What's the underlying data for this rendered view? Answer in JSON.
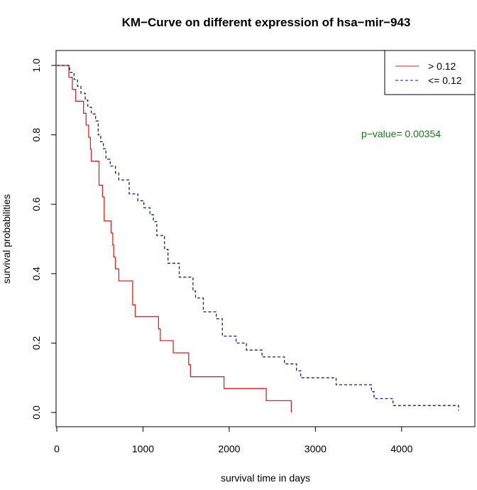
{
  "chart_data": {
    "type": "line",
    "subtype": "step",
    "title": "KM−Curve on different expression of hsa−mir−943",
    "xlabel": "survival time in days",
    "ylabel": "survival probabilities",
    "xlim": [
      0,
      4800
    ],
    "ylim": [
      0,
      1
    ],
    "x_ticks": [
      0,
      1000,
      2000,
      3000,
      4000
    ],
    "x_tick_labels": [
      "0",
      "1000",
      "2000",
      "3000",
      "4000"
    ],
    "y_ticks": [
      0,
      0.2,
      0.4,
      0.6,
      0.8,
      1.0
    ],
    "y_tick_labels": [
      "0.0",
      "0.2",
      "0.4",
      "0.6",
      "0.8",
      "1.0"
    ],
    "grid": false,
    "legend_position": "top-right",
    "annotation": {
      "text": "p−value= 0.00354",
      "color": "#1a7a1a"
    },
    "series": [
      {
        "name": "> 0.12",
        "color": "#dd2222",
        "dash": "solid",
        "points": [
          [
            0,
            1.0
          ],
          [
            140,
            1.0
          ],
          [
            140,
            0.966
          ],
          [
            180,
            0.966
          ],
          [
            180,
            0.931
          ],
          [
            220,
            0.931
          ],
          [
            220,
            0.897
          ],
          [
            310,
            0.897
          ],
          [
            310,
            0.862
          ],
          [
            340,
            0.862
          ],
          [
            340,
            0.828
          ],
          [
            370,
            0.828
          ],
          [
            370,
            0.793
          ],
          [
            390,
            0.793
          ],
          [
            390,
            0.759
          ],
          [
            400,
            0.759
          ],
          [
            400,
            0.724
          ],
          [
            490,
            0.724
          ],
          [
            490,
            0.655
          ],
          [
            530,
            0.655
          ],
          [
            530,
            0.621
          ],
          [
            550,
            0.621
          ],
          [
            550,
            0.552
          ],
          [
            630,
            0.552
          ],
          [
            630,
            0.517
          ],
          [
            650,
            0.517
          ],
          [
            650,
            0.483
          ],
          [
            660,
            0.483
          ],
          [
            660,
            0.448
          ],
          [
            680,
            0.448
          ],
          [
            680,
            0.414
          ],
          [
            720,
            0.414
          ],
          [
            720,
            0.379
          ],
          [
            880,
            0.379
          ],
          [
            880,
            0.31
          ],
          [
            910,
            0.31
          ],
          [
            910,
            0.276
          ],
          [
            1180,
            0.276
          ],
          [
            1180,
            0.241
          ],
          [
            1200,
            0.241
          ],
          [
            1200,
            0.207
          ],
          [
            1350,
            0.207
          ],
          [
            1350,
            0.172
          ],
          [
            1530,
            0.172
          ],
          [
            1530,
            0.138
          ],
          [
            1550,
            0.138
          ],
          [
            1550,
            0.103
          ],
          [
            1940,
            0.103
          ],
          [
            1940,
            0.069
          ],
          [
            2430,
            0.069
          ],
          [
            2430,
            0.034
          ],
          [
            2720,
            0.034
          ],
          [
            2720,
            0.0
          ]
        ]
      },
      {
        "name": "<= 0.12",
        "color": "#1a1a8c",
        "dash": "dashed",
        "points": [
          [
            0,
            1.0
          ],
          [
            150,
            1.0
          ],
          [
            150,
            0.98
          ],
          [
            200,
            0.98
          ],
          [
            200,
            0.96
          ],
          [
            240,
            0.96
          ],
          [
            240,
            0.94
          ],
          [
            280,
            0.94
          ],
          [
            280,
            0.92
          ],
          [
            330,
            0.92
          ],
          [
            330,
            0.9
          ],
          [
            360,
            0.9
          ],
          [
            360,
            0.88
          ],
          [
            400,
            0.88
          ],
          [
            400,
            0.86
          ],
          [
            450,
            0.86
          ],
          [
            450,
            0.84
          ],
          [
            480,
            0.84
          ],
          [
            480,
            0.8
          ],
          [
            510,
            0.8
          ],
          [
            510,
            0.78
          ],
          [
            540,
            0.78
          ],
          [
            540,
            0.76
          ],
          [
            570,
            0.76
          ],
          [
            570,
            0.73
          ],
          [
            620,
            0.73
          ],
          [
            620,
            0.71
          ],
          [
            680,
            0.71
          ],
          [
            680,
            0.69
          ],
          [
            720,
            0.69
          ],
          [
            720,
            0.67
          ],
          [
            840,
            0.67
          ],
          [
            840,
            0.63
          ],
          [
            940,
            0.63
          ],
          [
            940,
            0.61
          ],
          [
            1010,
            0.61
          ],
          [
            1010,
            0.59
          ],
          [
            1080,
            0.59
          ],
          [
            1080,
            0.57
          ],
          [
            1120,
            0.57
          ],
          [
            1120,
            0.55
          ],
          [
            1160,
            0.55
          ],
          [
            1160,
            0.51
          ],
          [
            1250,
            0.51
          ],
          [
            1250,
            0.47
          ],
          [
            1290,
            0.47
          ],
          [
            1290,
            0.43
          ],
          [
            1420,
            0.43
          ],
          [
            1420,
            0.39
          ],
          [
            1580,
            0.39
          ],
          [
            1580,
            0.35
          ],
          [
            1610,
            0.35
          ],
          [
            1610,
            0.33
          ],
          [
            1700,
            0.33
          ],
          [
            1700,
            0.29
          ],
          [
            1850,
            0.29
          ],
          [
            1850,
            0.27
          ],
          [
            1920,
            0.27
          ],
          [
            1920,
            0.22
          ],
          [
            2080,
            0.22
          ],
          [
            2080,
            0.2
          ],
          [
            2200,
            0.2
          ],
          [
            2200,
            0.18
          ],
          [
            2380,
            0.18
          ],
          [
            2380,
            0.16
          ],
          [
            2640,
            0.16
          ],
          [
            2640,
            0.14
          ],
          [
            2780,
            0.14
          ],
          [
            2780,
            0.12
          ],
          [
            2830,
            0.12
          ],
          [
            2830,
            0.1
          ],
          [
            3240,
            0.1
          ],
          [
            3240,
            0.08
          ],
          [
            3650,
            0.08
          ],
          [
            3650,
            0.06
          ],
          [
            3680,
            0.06
          ],
          [
            3680,
            0.04
          ],
          [
            3900,
            0.04
          ],
          [
            3900,
            0.02
          ],
          [
            4660,
            0.02
          ],
          [
            4660,
            0.005
          ]
        ]
      }
    ]
  }
}
